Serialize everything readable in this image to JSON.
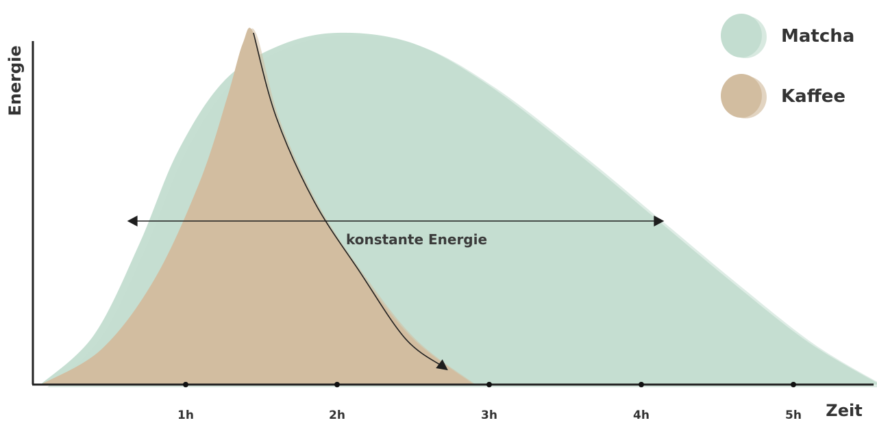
{
  "chart_data": {
    "type": "area",
    "xlabel": "Zeit",
    "ylabel": "Energie",
    "x_ticks": [
      {
        "value": 1,
        "label": "1h"
      },
      {
        "value": 2,
        "label": "2h"
      },
      {
        "value": 3,
        "label": "3h"
      },
      {
        "value": 4,
        "label": "4h"
      },
      {
        "value": 5,
        "label": "5h"
      }
    ],
    "xlim": [
      0,
      5.6
    ],
    "ylim": [
      0,
      1
    ],
    "grid": false,
    "legend_position": "top-right",
    "series": [
      {
        "name": "Matcha",
        "color": "#c3ddd0",
        "points": [
          [
            0.05,
            0
          ],
          [
            0.4,
            0.14
          ],
          [
            0.7,
            0.4
          ],
          [
            0.95,
            0.66
          ],
          [
            1.25,
            0.86
          ],
          [
            1.6,
            0.96
          ],
          [
            2.0,
            1.0
          ],
          [
            2.5,
            0.97
          ],
          [
            3.0,
            0.85
          ],
          [
            3.6,
            0.65
          ],
          [
            4.1,
            0.47
          ],
          [
            4.6,
            0.29
          ],
          [
            5.1,
            0.12
          ],
          [
            5.57,
            0
          ]
        ]
      },
      {
        "name": "Kaffee",
        "color": "#d2bda0",
        "points": [
          [
            0.05,
            0
          ],
          [
            0.45,
            0.1
          ],
          [
            0.8,
            0.3
          ],
          [
            1.1,
            0.58
          ],
          [
            1.28,
            0.82
          ],
          [
            1.38,
            0.97
          ],
          [
            1.45,
            1.0
          ],
          [
            1.6,
            0.76
          ],
          [
            1.85,
            0.52
          ],
          [
            2.15,
            0.32
          ],
          [
            2.5,
            0.13
          ],
          [
            2.9,
            0
          ]
        ]
      }
    ],
    "annotations": [
      {
        "label": "konstante Energie",
        "type": "double-arrow",
        "x_from": 0.62,
        "x_to": 4.15,
        "y": 0.465
      },
      {
        "type": "arrow",
        "path": [
          [
            1.45,
            1.0
          ],
          [
            1.6,
            0.76
          ],
          [
            1.85,
            0.52
          ],
          [
            2.15,
            0.32
          ],
          [
            2.45,
            0.13
          ],
          [
            2.7,
            0.05
          ]
        ]
      }
    ]
  }
}
